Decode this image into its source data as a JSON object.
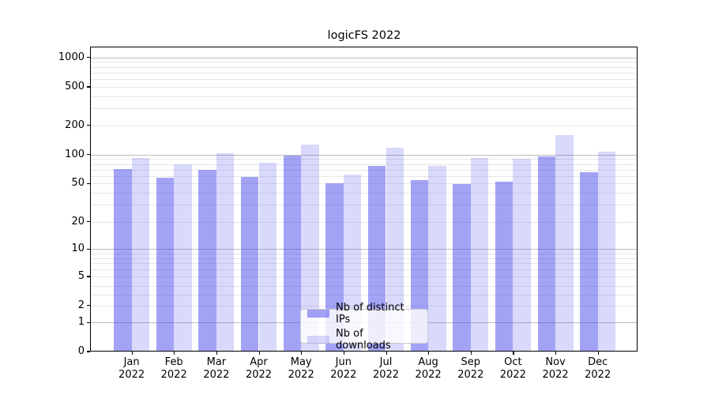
{
  "chart_data": {
    "type": "bar",
    "title": "logicFS 2022",
    "xlabel": "",
    "ylabel": "",
    "yscale": "symlog",
    "ylim": [
      0,
      1300
    ],
    "grid": true,
    "legend_position": "lower center",
    "categories": [
      "Jan 2022",
      "Feb 2022",
      "Mar 2022",
      "Apr 2022",
      "May 2022",
      "Jun 2022",
      "Jul 2022",
      "Aug 2022",
      "Sep 2022",
      "Oct 2022",
      "Nov 2022",
      "Dec 2022"
    ],
    "month_labels": [
      "Jan",
      "Feb",
      "Mar",
      "Apr",
      "May",
      "Jun",
      "Jul",
      "Aug",
      "Sep",
      "Oct",
      "Nov",
      "Dec"
    ],
    "year_label": "2022",
    "series": [
      {
        "name": "Nb of distinct IPs",
        "color": "rgba(72,72,238,0.50)",
        "values": [
          71,
          58,
          70,
          59,
          98,
          50,
          76,
          54,
          49,
          52,
          96,
          65
        ]
      },
      {
        "name": "Nb of downloads",
        "color": "rgba(84,84,240,0.22)",
        "values": [
          93,
          79,
          103,
          82,
          126,
          62,
          117,
          76,
          92,
          91,
          159,
          108
        ]
      }
    ],
    "y_axis": {
      "tick_labels": [
        "0",
        "1",
        "2",
        "5",
        "10",
        "20",
        "50",
        "100",
        "200",
        "500",
        "1000"
      ],
      "major_gridline_values": [
        1,
        10,
        100,
        1000
      ],
      "minor_gridline_values": [
        2,
        3,
        4,
        5,
        6,
        7,
        8,
        9,
        20,
        30,
        40,
        50,
        60,
        70,
        80,
        90,
        200,
        300,
        400,
        500,
        600,
        700,
        800,
        900
      ]
    },
    "colors": {
      "grid_major": "#bdbdbd",
      "grid_minor": "#e7e7e7",
      "axis": "#000000",
      "background": "#ffffff",
      "legend_border": "#cccccc"
    }
  }
}
